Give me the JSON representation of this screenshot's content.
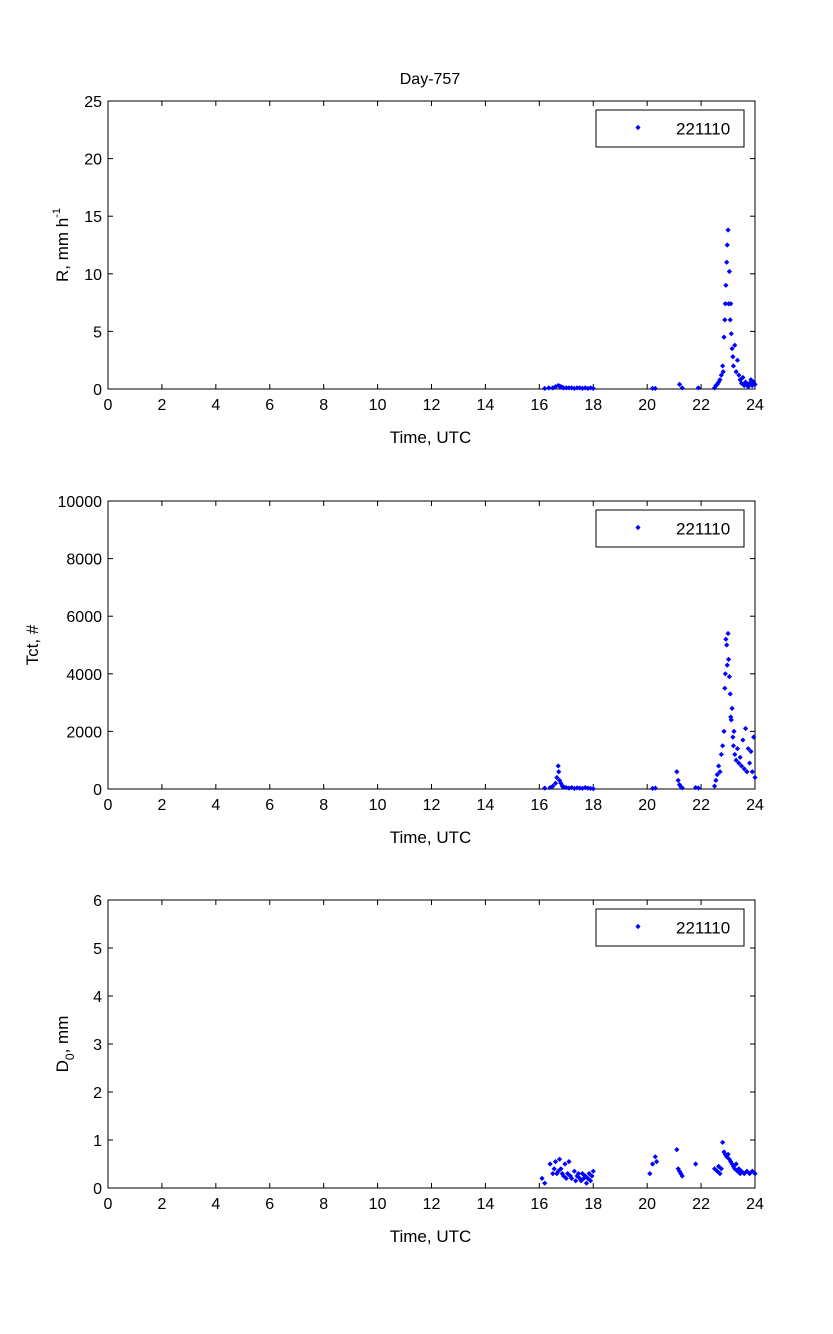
{
  "figure_title": "Day-757",
  "colors": {
    "series": "#0000ff",
    "axis": "#000000",
    "background": "#ffffff"
  },
  "chart_data": [
    {
      "type": "scatter",
      "title": "Day-757",
      "xlabel": "Time, UTC",
      "ylabel": "R, mm h",
      "ylabel_sup": "-1",
      "xlim": [
        0,
        24
      ],
      "ylim": [
        0,
        25
      ],
      "xticks": [
        0,
        2,
        4,
        6,
        8,
        10,
        12,
        14,
        16,
        18,
        20,
        22,
        24
      ],
      "yticks": [
        0,
        5,
        10,
        15,
        20,
        25
      ],
      "grid": false,
      "legend": "top-right",
      "series": [
        {
          "name": "221110",
          "x": [
            16.2,
            16.35,
            16.5,
            16.6,
            16.7,
            16.75,
            16.8,
            16.85,
            16.9,
            17.0,
            17.1,
            17.2,
            17.3,
            17.4,
            17.5,
            17.6,
            17.7,
            17.8,
            17.9,
            18.0,
            20.2,
            20.3,
            21.2,
            21.3,
            21.9,
            22.5,
            22.55,
            22.6,
            22.65,
            22.7,
            22.75,
            22.8,
            22.82,
            22.85,
            22.88,
            22.9,
            22.92,
            22.95,
            22.97,
            23.0,
            23.02,
            23.05,
            23.08,
            23.1,
            23.12,
            23.15,
            23.18,
            23.2,
            23.25,
            23.3,
            23.35,
            23.4,
            23.45,
            23.5,
            23.55,
            23.6,
            23.65,
            23.7,
            23.75,
            23.8,
            23.85,
            23.9,
            23.95,
            24.0
          ],
          "y": [
            0.05,
            0.1,
            0.1,
            0.2,
            0.3,
            0.25,
            0.2,
            0.15,
            0.1,
            0.1,
            0.1,
            0.1,
            0.05,
            0.1,
            0.1,
            0.05,
            0.1,
            0.05,
            0.1,
            0.05,
            0.05,
            0.05,
            0.4,
            0.1,
            0.1,
            0.1,
            0.3,
            0.4,
            0.6,
            0.8,
            1.2,
            2.0,
            1.5,
            4.5,
            6.0,
            7.4,
            9.0,
            11.0,
            12.5,
            13.8,
            7.4,
            10.2,
            6.0,
            7.4,
            4.8,
            3.5,
            2.8,
            2.0,
            3.8,
            1.5,
            2.5,
            1.2,
            0.8,
            0.5,
            1.0,
            0.3,
            0.6,
            0.4,
            0.2,
            0.5,
            0.8,
            0.3,
            0.6,
            0.4
          ]
        }
      ]
    },
    {
      "type": "scatter",
      "xlabel": "Time, UTC",
      "ylabel": "Tct, #",
      "xlim": [
        0,
        24
      ],
      "ylim": [
        0,
        10000
      ],
      "xticks": [
        0,
        2,
        4,
        6,
        8,
        10,
        12,
        14,
        16,
        18,
        20,
        22,
        24
      ],
      "yticks": [
        0,
        2000,
        4000,
        6000,
        8000,
        10000
      ],
      "grid": false,
      "legend": "top-right",
      "series": [
        {
          "name": "221110",
          "x": [
            16.2,
            16.4,
            16.5,
            16.6,
            16.65,
            16.7,
            16.72,
            16.75,
            16.8,
            16.85,
            16.9,
            17.0,
            17.1,
            17.2,
            17.3,
            17.4,
            17.5,
            17.6,
            17.7,
            17.8,
            17.9,
            18.0,
            20.2,
            20.3,
            21.1,
            21.15,
            21.2,
            21.25,
            21.3,
            21.8,
            21.9,
            22.5,
            22.55,
            22.6,
            22.65,
            22.7,
            22.75,
            22.8,
            22.85,
            22.88,
            22.9,
            22.92,
            22.95,
            22.97,
            23.0,
            23.02,
            23.05,
            23.08,
            23.1,
            23.12,
            23.15,
            23.18,
            23.2,
            23.22,
            23.25,
            23.3,
            23.35,
            23.4,
            23.45,
            23.5,
            23.55,
            23.6,
            23.65,
            23.7,
            23.75,
            23.8,
            23.85,
            23.9,
            23.95,
            24.0
          ],
          "y": [
            30,
            50,
            100,
            200,
            400,
            800,
            600,
            300,
            200,
            100,
            80,
            50,
            30,
            50,
            20,
            40,
            30,
            20,
            50,
            30,
            20,
            10,
            20,
            30,
            600,
            300,
            150,
            80,
            40,
            50,
            30,
            100,
            300,
            500,
            800,
            600,
            1200,
            1500,
            2000,
            3500,
            4000,
            5200,
            5000,
            4300,
            5400,
            4500,
            3900,
            3300,
            2500,
            2400,
            2800,
            1800,
            1500,
            2000,
            1200,
            1000,
            1400,
            900,
            1100,
            800,
            1700,
            700,
            2100,
            600,
            1400,
            900,
            1300,
            600,
            1800,
            400
          ]
        }
      ]
    },
    {
      "type": "scatter",
      "xlabel": "Time, UTC",
      "ylabel": "D",
      "ylabel_sub": "0",
      "ylabel_suffix": ", mm",
      "xlim": [
        0,
        24
      ],
      "ylim": [
        0,
        6
      ],
      "xticks": [
        0,
        2,
        4,
        6,
        8,
        10,
        12,
        14,
        16,
        18,
        20,
        22,
        24
      ],
      "yticks": [
        0,
        1,
        2,
        3,
        4,
        5,
        6
      ],
      "grid": false,
      "legend": "top-right",
      "series": [
        {
          "name": "221110",
          "x": [
            16.1,
            16.2,
            16.4,
            16.5,
            16.55,
            16.6,
            16.65,
            16.7,
            16.75,
            16.8,
            16.85,
            16.9,
            16.95,
            17.0,
            17.05,
            17.1,
            17.15,
            17.2,
            17.3,
            17.35,
            17.4,
            17.45,
            17.5,
            17.55,
            17.6,
            17.65,
            17.7,
            17.75,
            17.8,
            17.85,
            17.9,
            17.95,
            18.0,
            20.1,
            20.2,
            20.3,
            20.35,
            21.1,
            21.15,
            21.2,
            21.25,
            21.3,
            21.8,
            22.5,
            22.6,
            22.65,
            22.7,
            22.75,
            22.8,
            22.85,
            22.9,
            22.95,
            23.0,
            23.05,
            23.1,
            23.15,
            23.2,
            23.25,
            23.3,
            23.35,
            23.4,
            23.45,
            23.5,
            23.6,
            23.7,
            23.8,
            23.9,
            24.0
          ],
          "y": [
            0.2,
            0.1,
            0.5,
            0.3,
            0.4,
            0.55,
            0.3,
            0.35,
            0.6,
            0.4,
            0.3,
            0.25,
            0.5,
            0.2,
            0.3,
            0.55,
            0.25,
            0.2,
            0.35,
            0.15,
            0.25,
            0.3,
            0.2,
            0.15,
            0.3,
            0.2,
            0.25,
            0.1,
            0.2,
            0.3,
            0.15,
            0.25,
            0.35,
            0.3,
            0.5,
            0.65,
            0.55,
            0.8,
            0.4,
            0.35,
            0.3,
            0.25,
            0.5,
            0.4,
            0.35,
            0.45,
            0.3,
            0.4,
            0.95,
            0.75,
            0.7,
            0.65,
            0.7,
            0.6,
            0.55,
            0.5,
            0.45,
            0.4,
            0.5,
            0.35,
            0.4,
            0.3,
            0.35,
            0.3,
            0.35,
            0.3,
            0.35,
            0.3
          ]
        }
      ]
    }
  ]
}
